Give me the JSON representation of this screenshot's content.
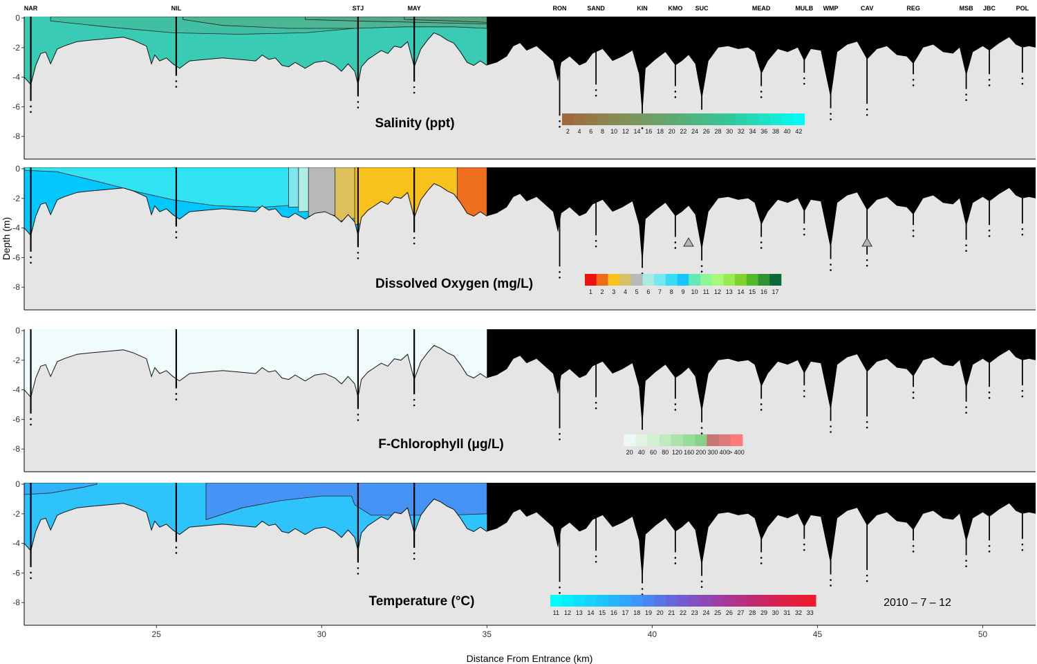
{
  "chart_data": {
    "type": "heatmap",
    "title": "",
    "date_label": "2010 – 7 – 12",
    "xlabel": "Distance From Entrance (km)",
    "ylabel": "Depth (m)",
    "xlim": [
      21,
      51.6
    ],
    "x_ticks": [
      25,
      30,
      35,
      40,
      45,
      50
    ],
    "x_tick_labels": [
      "25",
      "30",
      "35",
      "40",
      "45",
      "50"
    ],
    "ylim": [
      -10,
      0
    ],
    "y_ticks": [
      0,
      -2,
      -4,
      -6,
      -8
    ],
    "y_tick_labels": [
      "0",
      "-2",
      "-4",
      "-6",
      "-8"
    ],
    "data_coverage_end_km": 35,
    "stations": [
      {
        "name": "NAR",
        "km": 21.2,
        "depth": -5.6
      },
      {
        "name": "NIL",
        "km": 25.6,
        "depth": -3.9
      },
      {
        "name": "STJ",
        "km": 31.1,
        "depth": -5.3
      },
      {
        "name": "MAY",
        "km": 32.8,
        "depth": -4.3
      },
      {
        "name": "RON",
        "km": 37.2,
        "depth": -6.6
      },
      {
        "name": "SAND",
        "km": 38.3,
        "depth": -4.5
      },
      {
        "name": "KIN",
        "km": 39.7,
        "depth": -6.7
      },
      {
        "name": "KMO",
        "km": 40.7,
        "depth": -4.6
      },
      {
        "name": "SUC",
        "km": 41.5,
        "depth": -6.2
      },
      {
        "name": "MEAD",
        "km": 43.3,
        "depth": -4.6
      },
      {
        "name": "MULB",
        "km": 44.6,
        "depth": -3.7
      },
      {
        "name": "WMP",
        "km": 45.4,
        "depth": -6.1
      },
      {
        "name": "CAV",
        "km": 46.5,
        "depth": -5.8
      },
      {
        "name": "REG",
        "km": 47.9,
        "depth": -3.8
      },
      {
        "name": "MSB",
        "km": 49.5,
        "depth": -4.8
      },
      {
        "name": "JBC",
        "km": 50.2,
        "depth": -3.8
      },
      {
        "name": "POL",
        "km": 51.2,
        "depth": -3.7
      }
    ],
    "panels": [
      {
        "title": "Salinity (ppt)",
        "legend_labels": [
          "2",
          "4",
          "6",
          "8",
          "10",
          "12",
          "14",
          "16",
          "18",
          "20",
          "22",
          "24",
          "26",
          "28",
          "30",
          "32",
          "34",
          "36",
          "38",
          "40",
          "42"
        ],
        "legend_colors": [
          "#a0693f",
          "#9b7244",
          "#957a49",
          "#8e824e",
          "#888a54",
          "#80915a",
          "#799760",
          "#719d66",
          "#69a36c",
          "#60a973",
          "#57af7a",
          "#4eb582",
          "#44bb8a",
          "#3bc192",
          "#32c79a",
          "#2ad0a8",
          "#24d8b6",
          "#1ee1c4",
          "#16e9d4",
          "#0cf2e4",
          "#00fbf8"
        ],
        "levels": [
          {
            "value": 29.0,
            "color": "#3acbb4"
          },
          {
            "value": 28.0,
            "color": "#41bfa2"
          },
          {
            "value": 26.5,
            "color": "#4bb595"
          },
          {
            "value": 25.5,
            "color": "#53aa89"
          },
          {
            "value": 24.5,
            "color": "#5a9f7f"
          }
        ],
        "no_data_above_bathymetry_east": true,
        "markers": []
      },
      {
        "title": "Dissolved Oxygen (mg/L)",
        "legend_labels": [
          "1",
          "2",
          "3",
          "4",
          "5",
          "6",
          "7",
          "8",
          "9",
          "10",
          "11",
          "12",
          "13",
          "14",
          "15",
          "16",
          "17"
        ],
        "legend_colors": [
          "#ee1111",
          "#f06a1c",
          "#f6c41c",
          "#d8c064",
          "#b8b8b8",
          "#a9eae2",
          "#75e7ee",
          "#39dcf5",
          "#17c6ff",
          "#63e9b5",
          "#8df794",
          "#a6f979",
          "#9aea53",
          "#7ed42c",
          "#53ba27",
          "#2e9433",
          "#0c6a38"
        ],
        "levels": [
          {
            "value": 8.5,
            "color": "#02c8ff"
          },
          {
            "value": 7.5,
            "color": "#31e2f2"
          },
          {
            "value": 6.5,
            "color": "#7ee6ec"
          },
          {
            "value": 5.5,
            "color": "#b0ece6"
          },
          {
            "value": 4.5,
            "color": "#b9b9b9"
          },
          {
            "value": 3.5,
            "color": "#dcc05c"
          },
          {
            "value": 2.5,
            "color": "#f7c21c"
          },
          {
            "value": 1.5,
            "color": "#f06f1e"
          }
        ],
        "no_data_above_bathymetry_east": true,
        "markers": [
          {
            "km": 41.1,
            "depth": -5.0
          },
          {
            "km": 46.5,
            "depth": -5.0
          }
        ]
      },
      {
        "title": "F-Chlorophyll (μg/L)",
        "legend_labels": [
          "20",
          "40",
          "60",
          "80",
          "120",
          "160",
          "200",
          "300",
          "400",
          "> 400"
        ],
        "legend_colors": [
          "#edf8f3",
          "#e2f3e2",
          "#d3f0d3",
          "#c1eac0",
          "#ace3ad",
          "#97dc97",
          "#88d188",
          "#c57777",
          "#df7a7a",
          "#ff7b7b"
        ],
        "levels": [
          {
            "value": 10,
            "color": "#f0fcfc"
          }
        ],
        "no_data_above_bathymetry_east": true,
        "markers": []
      },
      {
        "title": "Temperature (°C)",
        "legend_labels": [
          "11",
          "12",
          "13",
          "14",
          "15",
          "16",
          "17",
          "18",
          "19",
          "20",
          "21",
          "22",
          "23",
          "24",
          "25",
          "26",
          "27",
          "28",
          "29",
          "30",
          "31",
          "32",
          "33"
        ],
        "legend_colors": [
          "#00fcfc",
          "#06eefc",
          "#0ee0fc",
          "#16d2fc",
          "#1ec4fc",
          "#26b6fc",
          "#30a6fc",
          "#3d96f8",
          "#4a86f0",
          "#5876e6",
          "#6567dc",
          "#735bd0",
          "#8150c2",
          "#8e47b4",
          "#9c3ea4",
          "#a83794",
          "#b43184",
          "#bf2b72",
          "#ca2762",
          "#d42352",
          "#dd2044",
          "#e61d38",
          "#ee1a2e"
        ],
        "levels": [
          {
            "value": 30.5,
            "color": "#2fc3fb"
          },
          {
            "value": 29.5,
            "color": "#31b0fc"
          },
          {
            "value": 28.5,
            "color": "#4493f5"
          }
        ],
        "no_data_above_bathymetry_east": true,
        "markers": []
      }
    ]
  }
}
